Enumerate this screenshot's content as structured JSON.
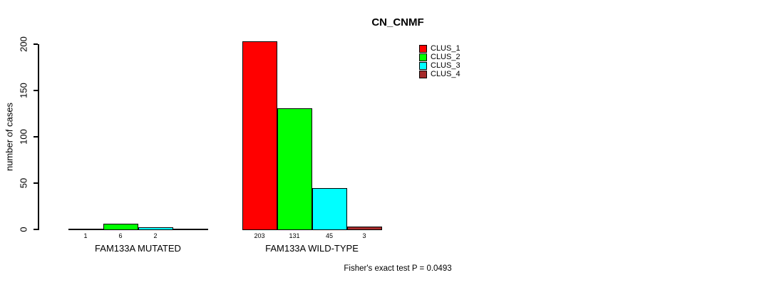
{
  "chart_data": {
    "type": "bar",
    "title": "CN_CNMF",
    "ylabel": "number of cases",
    "xlabel": "",
    "ylim": [
      0,
      200
    ],
    "yticks": [
      0,
      50,
      100,
      150,
      200
    ],
    "grid": false,
    "legend_position": "top-right",
    "categories": [
      "FAM133A MUTATED",
      "FAM133A WILD-TYPE"
    ],
    "series": [
      {
        "name": "CLUS_1",
        "color": "#ff0000",
        "values": [
          1,
          203
        ]
      },
      {
        "name": "CLUS_2",
        "color": "#00ff00",
        "values": [
          6,
          131
        ]
      },
      {
        "name": "CLUS_3",
        "color": "#00ffff",
        "values": [
          2,
          45
        ]
      },
      {
        "name": "CLUS_4",
        "color": "#a52a2a",
        "values": [
          0,
          3
        ]
      }
    ],
    "bar_value_labels": [
      [
        "1",
        "6",
        "2",
        ""
      ],
      [
        "203",
        "131",
        "45",
        "3"
      ]
    ],
    "annotation": "Fisher's exact test P = 0.0493"
  }
}
